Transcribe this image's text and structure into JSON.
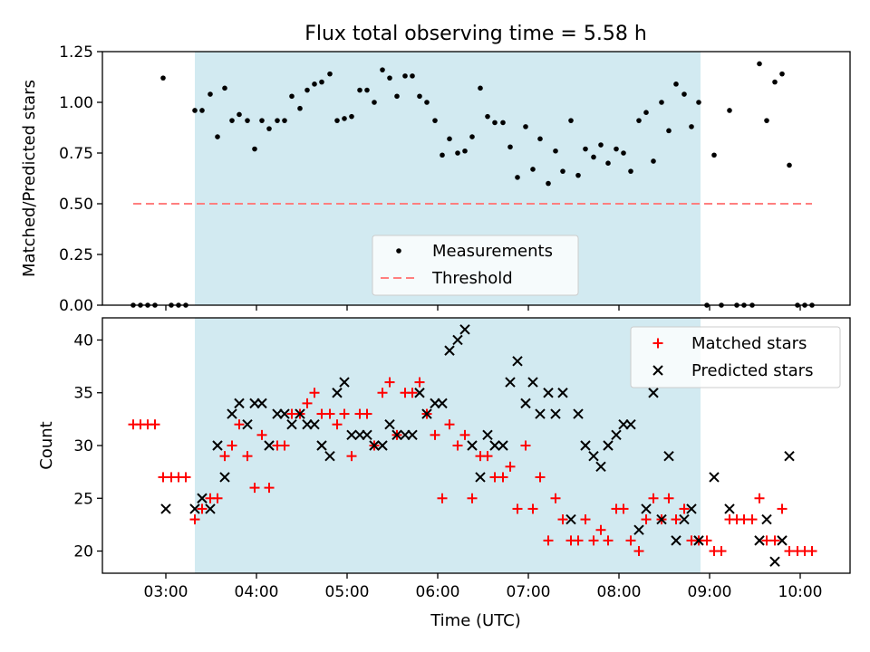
{
  "figure_title": "Flux total observing time = 5.58 h",
  "colors": {
    "span": "#add8e6",
    "measurement": "#000000",
    "threshold": "#ff7f7f",
    "matched": "#ff0000",
    "predicted": "#000000"
  },
  "chart_data": [
    {
      "type": "scatter",
      "ylabel": "Matched/Predicted stars",
      "xlim": [
        2.3,
        10.55
      ],
      "ylim": [
        0,
        1.25
      ],
      "yticks": [
        0.0,
        0.25,
        0.5,
        0.75,
        1.0,
        1.25
      ],
      "ytick_labels": [
        "0.00",
        "0.25",
        "0.50",
        "0.75",
        "1.00",
        "1.25"
      ],
      "highlight_span": [
        3.32,
        8.9
      ],
      "legend": {
        "placement": "lower-center",
        "entries": [
          "Measurements",
          "Threshold"
        ]
      },
      "series": [
        {
          "name": "Measurements",
          "marker": "dot",
          "x": [
            2.64,
            2.72,
            2.8,
            2.88,
            2.97,
            3.06,
            3.14,
            3.22,
            3.32,
            3.4,
            3.49,
            3.57,
            3.65,
            3.73,
            3.81,
            3.9,
            3.98,
            4.06,
            4.14,
            4.23,
            4.31,
            4.39,
            4.48,
            4.56,
            4.64,
            4.72,
            4.81,
            4.89,
            4.97,
            5.05,
            5.14,
            5.22,
            5.3,
            5.39,
            5.47,
            5.55,
            5.64,
            5.72,
            5.8,
            5.88,
            5.97,
            6.05,
            6.13,
            6.22,
            6.3,
            6.38,
            6.47,
            6.55,
            6.63,
            6.72,
            6.8,
            6.88,
            6.97,
            7.05,
            7.13,
            7.22,
            7.3,
            7.38,
            7.47,
            7.55,
            7.63,
            7.72,
            7.8,
            7.88,
            7.97,
            8.05,
            8.13,
            8.22,
            8.3,
            8.38,
            8.47,
            8.55,
            8.63,
            8.72,
            8.8,
            8.88,
            8.97,
            9.05,
            9.13,
            9.22,
            9.3,
            9.38,
            9.47,
            9.55,
            9.63,
            9.72,
            9.8,
            9.88,
            9.97,
            10.05,
            10.13
          ],
          "y": [
            0.0,
            0.0,
            0.0,
            0.0,
            1.12,
            0.0,
            0.0,
            0.0,
            0.96,
            0.96,
            1.04,
            0.83,
            1.07,
            0.91,
            0.94,
            0.91,
            0.77,
            0.91,
            0.87,
            0.91,
            0.91,
            1.03,
            0.97,
            1.06,
            1.09,
            1.1,
            1.14,
            0.91,
            0.92,
            0.93,
            1.06,
            1.06,
            1.0,
            1.16,
            1.12,
            1.03,
            1.13,
            1.13,
            1.03,
            1.0,
            0.91,
            0.74,
            0.82,
            0.75,
            0.76,
            0.83,
            1.07,
            0.93,
            0.9,
            0.9,
            0.78,
            0.63,
            0.88,
            0.67,
            0.82,
            0.6,
            0.76,
            0.66,
            0.91,
            0.64,
            0.77,
            0.73,
            0.79,
            0.7,
            0.77,
            0.75,
            0.66,
            0.91,
            0.95,
            0.71,
            1.0,
            0.86,
            1.09,
            1.04,
            0.88,
            1.0,
            0.0,
            0.74,
            0.0,
            0.96,
            0.0,
            0.0,
            0.0,
            1.19,
            0.91,
            1.1,
            1.14,
            0.69,
            0.0,
            0.0,
            0.0
          ]
        },
        {
          "name": "Threshold",
          "style": "dashed",
          "x": [
            2.64,
            10.13
          ],
          "y": [
            0.5,
            0.5
          ]
        }
      ]
    },
    {
      "type": "scatter",
      "xlabel": "Time (UTC)",
      "ylabel": "Count",
      "xlim": [
        2.3,
        10.55
      ],
      "ylim": [
        17.9,
        42.1
      ],
      "xticks": [
        3,
        4,
        5,
        6,
        7,
        8,
        9,
        10
      ],
      "xtick_labels": [
        "03:00",
        "04:00",
        "05:00",
        "06:00",
        "07:00",
        "08:00",
        "09:00",
        "10:00"
      ],
      "yticks": [
        20,
        25,
        30,
        35,
        40
      ],
      "ytick_labels": [
        "20",
        "25",
        "30",
        "35",
        "40"
      ],
      "highlight_span": [
        3.32,
        8.9
      ],
      "legend": {
        "placement": "top-right",
        "entries": [
          "Matched stars",
          "Predicted stars"
        ]
      },
      "series": [
        {
          "name": "Matched stars",
          "marker": "plus",
          "x": [
            2.64,
            2.72,
            2.8,
            2.88,
            2.97,
            3.06,
            3.14,
            3.22,
            3.32,
            3.4,
            3.49,
            3.57,
            3.65,
            3.73,
            3.81,
            3.9,
            3.98,
            4.06,
            4.14,
            4.23,
            4.31,
            4.39,
            4.48,
            4.56,
            4.64,
            4.72,
            4.81,
            4.89,
            4.97,
            5.05,
            5.14,
            5.22,
            5.3,
            5.39,
            5.47,
            5.55,
            5.64,
            5.72,
            5.8,
            5.88,
            5.97,
            6.05,
            6.13,
            6.22,
            6.3,
            6.38,
            6.47,
            6.55,
            6.63,
            6.72,
            6.8,
            6.88,
            6.97,
            7.05,
            7.13,
            7.22,
            7.3,
            7.38,
            7.47,
            7.55,
            7.63,
            7.72,
            7.8,
            7.88,
            7.97,
            8.05,
            8.13,
            8.22,
            8.3,
            8.38,
            8.47,
            8.55,
            8.63,
            8.72,
            8.8,
            8.88,
            8.97,
            9.05,
            9.13,
            9.22,
            9.3,
            9.38,
            9.47,
            9.55,
            9.63,
            9.72,
            9.8,
            9.88,
            9.97,
            10.05,
            10.13
          ],
          "y": [
            32,
            32,
            32,
            32,
            27,
            27,
            27,
            27,
            23,
            24,
            25,
            25,
            29,
            30,
            32,
            29,
            26,
            31,
            26,
            30,
            30,
            33,
            33,
            34,
            35,
            33,
            33,
            32,
            33,
            29,
            33,
            33,
            30,
            35,
            36,
            31,
            35,
            35,
            36,
            33,
            31,
            25,
            32,
            30,
            31,
            25,
            29,
            29,
            27,
            27,
            28,
            24,
            30,
            24,
            27,
            21,
            25,
            23,
            21,
            21,
            23,
            21,
            22,
            21,
            24,
            24,
            21,
            20,
            23,
            25,
            23,
            25,
            23,
            24,
            21,
            21,
            21,
            20,
            20,
            23,
            23,
            23,
            23,
            25,
            21,
            21,
            24,
            20,
            20,
            20,
            20
          ]
        },
        {
          "name": "Predicted stars",
          "marker": "x",
          "x": [
            3.0,
            3.32,
            3.4,
            3.49,
            3.57,
            3.65,
            3.73,
            3.81,
            3.9,
            3.98,
            4.06,
            4.14,
            4.23,
            4.31,
            4.39,
            4.48,
            4.56,
            4.64,
            4.72,
            4.81,
            4.89,
            4.97,
            5.05,
            5.14,
            5.22,
            5.3,
            5.39,
            5.47,
            5.55,
            5.64,
            5.72,
            5.8,
            5.88,
            5.97,
            6.05,
            6.13,
            6.22,
            6.3,
            6.38,
            6.47,
            6.55,
            6.63,
            6.72,
            6.8,
            6.88,
            6.97,
            7.05,
            7.13,
            7.22,
            7.3,
            7.38,
            7.47,
            7.55,
            7.63,
            7.72,
            7.8,
            7.88,
            7.97,
            8.05,
            8.13,
            8.22,
            8.3,
            8.38,
            8.47,
            8.55,
            8.63,
            8.72,
            8.8,
            8.88,
            9.05,
            9.22,
            9.55,
            9.63,
            9.72,
            9.8,
            9.88
          ],
          "y": [
            24,
            24,
            25,
            24,
            30,
            27,
            33,
            34,
            32,
            34,
            34,
            30,
            33,
            33,
            32,
            33,
            32,
            32,
            30,
            29,
            35,
            36,
            31,
            31,
            31,
            30,
            30,
            32,
            31,
            31,
            31,
            35,
            33,
            34,
            34,
            39,
            40,
            41,
            30,
            27,
            31,
            30,
            30,
            36,
            38,
            34,
            36,
            33,
            35,
            33,
            35,
            23,
            33,
            30,
            29,
            28,
            30,
            31,
            32,
            32,
            22,
            24,
            35,
            23,
            29,
            21,
            23,
            24,
            21,
            27,
            24,
            21,
            23,
            19,
            21,
            29
          ]
        }
      ]
    }
  ]
}
